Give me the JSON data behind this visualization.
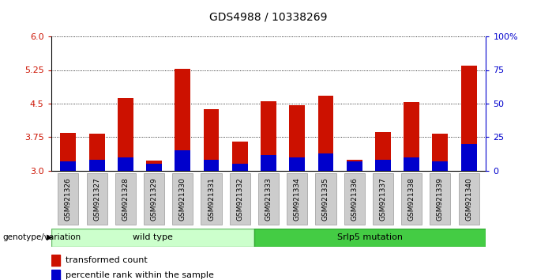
{
  "title": "GDS4988 / 10338269",
  "samples": [
    "GSM921326",
    "GSM921327",
    "GSM921328",
    "GSM921329",
    "GSM921330",
    "GSM921331",
    "GSM921332",
    "GSM921333",
    "GSM921334",
    "GSM921335",
    "GSM921336",
    "GSM921337",
    "GSM921338",
    "GSM921339",
    "GSM921340"
  ],
  "transformed_count": [
    3.85,
    3.82,
    4.62,
    3.22,
    5.28,
    4.38,
    3.66,
    4.55,
    4.47,
    4.68,
    3.25,
    3.87,
    4.53,
    3.83,
    5.35
  ],
  "percentile_rank": [
    7,
    8,
    10,
    5,
    15,
    8,
    5,
    12,
    10,
    13,
    7,
    8,
    10,
    7,
    20
  ],
  "bar_color": "#cc1100",
  "blue_color": "#0000cc",
  "y_min": 3.0,
  "y_max": 6.0,
  "y_ticks": [
    3.0,
    3.75,
    4.5,
    5.25,
    6.0
  ],
  "right_y_ticks": [
    0,
    25,
    50,
    75,
    100
  ],
  "right_y_labels": [
    "0",
    "25",
    "50",
    "75",
    "100%"
  ],
  "wild_type_count": 7,
  "group_labels": [
    "wild type",
    "Srlp5 mutation"
  ],
  "wt_facecolor": "#ccffcc",
  "wt_edgecolor": "#66bb66",
  "mut_facecolor": "#44cc44",
  "mut_edgecolor": "#33aa33",
  "legend_labels": [
    "transformed count",
    "percentile rank within the sample"
  ],
  "left_axis_color": "#cc1100",
  "right_axis_color": "#0000cc",
  "tick_label_bg": "#cccccc",
  "bar_width": 0.55
}
